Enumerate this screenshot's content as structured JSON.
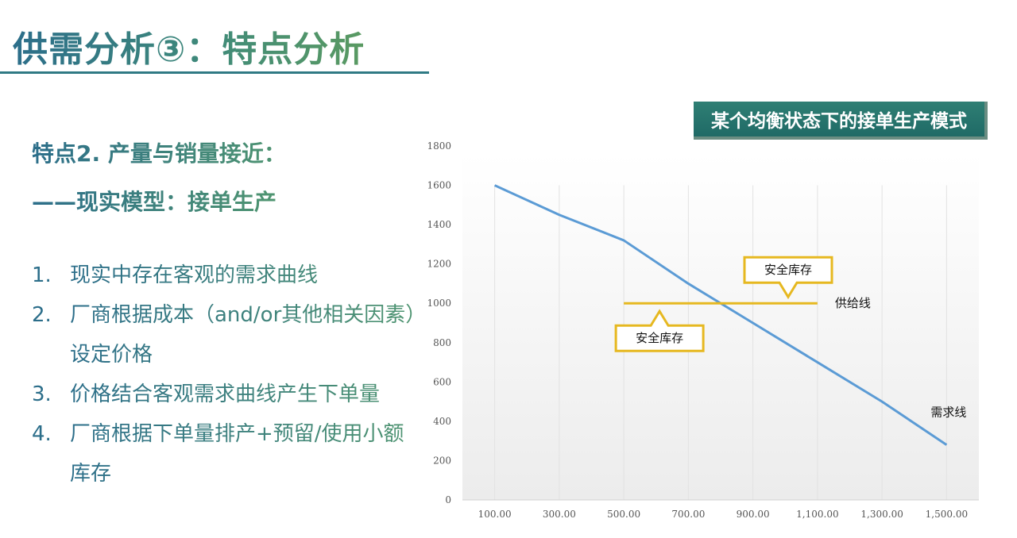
{
  "page": {
    "title": "供需分析③：特点分析",
    "heading_line1": "特点2. 产量与销量接近：",
    "heading_line2": "——现实模型：接单生产",
    "list": [
      {
        "num": "1.",
        "text": "现实中存在客观的需求曲线"
      },
      {
        "num": "2.",
        "text": "厂商根据成本（and/or其他相关因素）设定价格"
      },
      {
        "num": "3.",
        "text": "价格结合客观需求曲线产生下单量"
      },
      {
        "num": "4.",
        "text": "厂商根据下单量排产+预留/使用小额库存"
      }
    ]
  },
  "chart_data": {
    "type": "line",
    "title": "某个均衡状态下的接单生产模式",
    "xlabel": "",
    "ylabel": "",
    "categories": [
      "100.00",
      "300.00",
      "500.00",
      "700.00",
      "900.00",
      "1,100.00",
      "1,300.00",
      "1,500.00"
    ],
    "x": [
      100,
      300,
      500,
      700,
      900,
      1100,
      1300,
      1500
    ],
    "ylim": [
      0,
      1800
    ],
    "yticks": [
      0,
      200,
      400,
      600,
      800,
      1000,
      1200,
      1400,
      1600,
      1800
    ],
    "grid": "vertical",
    "series": [
      {
        "name": "需求线",
        "x": [
          100,
          300,
          500,
          700,
          900,
          1100,
          1300,
          1500
        ],
        "values": [
          1600,
          1450,
          1320,
          1100,
          900,
          700,
          500,
          280
        ],
        "color": "#5b9bd5"
      },
      {
        "name": "供给线",
        "x": [
          500,
          1100
        ],
        "values": [
          1000,
          1000
        ],
        "color": "#e6b820"
      }
    ],
    "annotations": [
      {
        "text": "安全库存",
        "position": "above",
        "arrow": "down"
      },
      {
        "text": "安全库存",
        "position": "below",
        "arrow": "up"
      }
    ],
    "accent_color": "#e6b820"
  }
}
